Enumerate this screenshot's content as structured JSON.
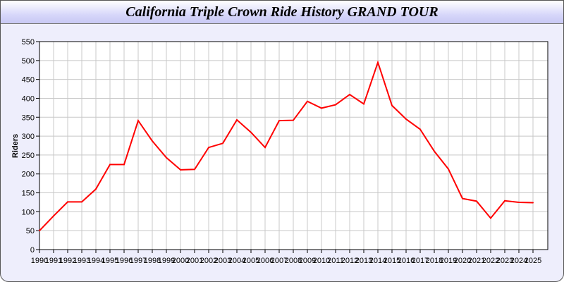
{
  "chart_data": {
    "type": "line",
    "title": "California Triple Crown Ride History GRAND TOUR",
    "xlabel": "",
    "ylabel": "Riders",
    "ylim": [
      0,
      550
    ],
    "yticks": [
      0,
      50,
      100,
      150,
      200,
      250,
      300,
      350,
      400,
      450,
      500,
      550
    ],
    "grid": true,
    "line_color": "#ff0000",
    "categories": [
      "1990",
      "1991",
      "1992",
      "1993",
      "1994",
      "1995",
      "1996",
      "1997",
      "1998",
      "1999",
      "2000",
      "2001",
      "2002",
      "2003",
      "2004",
      "2005",
      "2006",
      "2007",
      "2008",
      "2009",
      "2010",
      "2011",
      "2012",
      "2013",
      "2014",
      "2015",
      "2016",
      "2017",
      "2018",
      "2019",
      "2020",
      "2021",
      "2022",
      "2023",
      "2024",
      "2025"
    ],
    "values": [
      50,
      89,
      126,
      126,
      160,
      225,
      225,
      341,
      287,
      243,
      211,
      212,
      270,
      281,
      343,
      310,
      270,
      341,
      342,
      392,
      374,
      383,
      410,
      385,
      495,
      381,
      345,
      318,
      260,
      213,
      135,
      128,
      83,
      129,
      125,
      124
    ]
  }
}
